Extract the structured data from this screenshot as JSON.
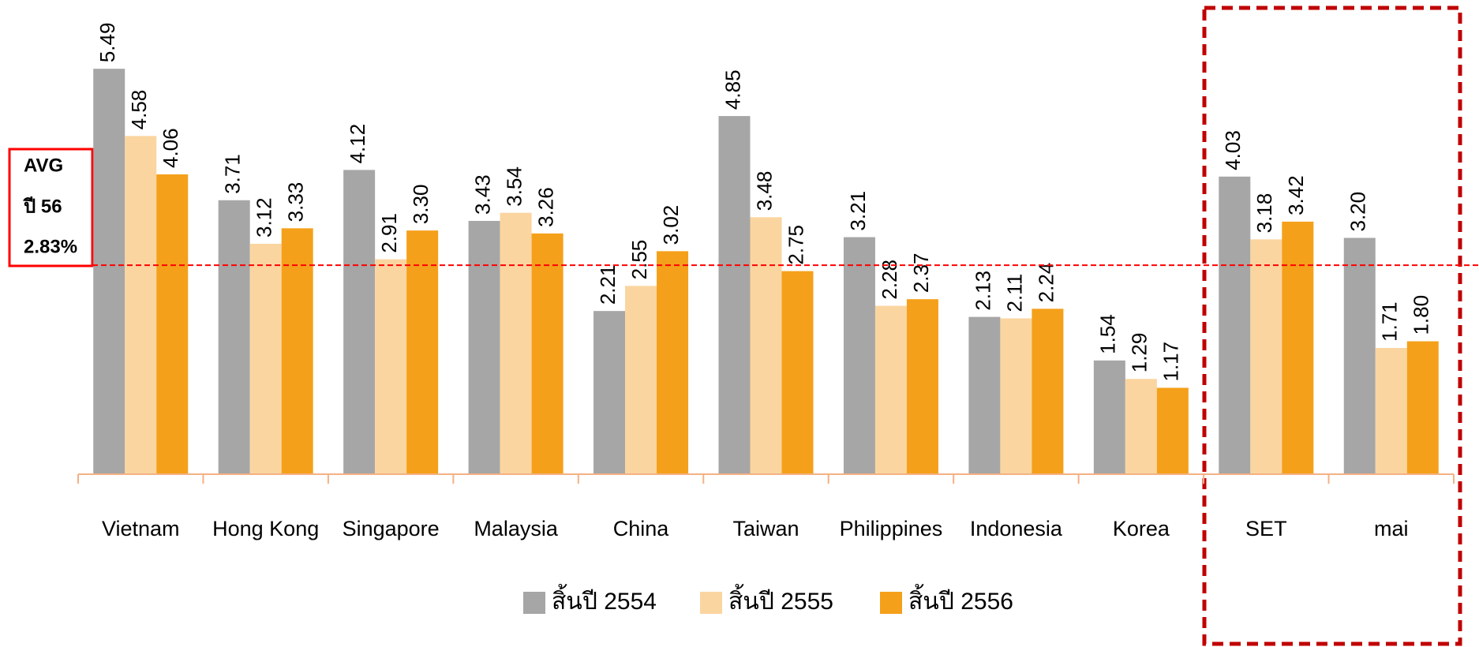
{
  "chart_data": {
    "type": "bar",
    "categories": [
      "Vietnam",
      "Hong Kong",
      "Singapore",
      "Malaysia",
      "China",
      "Taiwan",
      "Philippines",
      "Indonesia",
      "Korea",
      "SET",
      "mai"
    ],
    "series": [
      {
        "name": "สิ้นปี 2554",
        "color": "#a6a6a6",
        "values": [
          5.49,
          3.71,
          4.12,
          3.43,
          2.21,
          4.85,
          3.21,
          2.13,
          1.54,
          4.03,
          3.2
        ],
        "value_labels": [
          "5.49",
          "3.71",
          "4.12",
          "3.43",
          "2.21",
          "4.85",
          "3.21",
          "2.13",
          "1.54",
          "4.03",
          "3.20"
        ]
      },
      {
        "name": "สิ้นปี 2555",
        "color": "#fbd5a0",
        "values": [
          4.58,
          3.12,
          2.91,
          3.54,
          2.55,
          3.48,
          2.28,
          2.11,
          1.29,
          3.18,
          1.71
        ],
        "value_labels": [
          "4.58",
          "3.12",
          "2.91",
          "3.54",
          "2.55",
          "3.48",
          "2.28",
          "2.11",
          "1.29",
          "3.18",
          "1.71"
        ]
      },
      {
        "name": "สิ้นปี 2556",
        "color": "#f5a01a",
        "values": [
          4.06,
          3.33,
          3.3,
          3.26,
          3.02,
          2.75,
          2.37,
          2.24,
          1.17,
          3.42,
          1.8
        ],
        "value_labels": [
          "4.06",
          "3.33",
          "3.30",
          "3.26",
          "3.02",
          "2.75",
          "2.37",
          "2.24",
          "1.17",
          "3.42",
          "1.80"
        ]
      }
    ],
    "ylim": [
      0,
      6.4
    ],
    "reference_line": {
      "value": 2.83,
      "color": "#ff0000",
      "labels": [
        "AVG",
        "ปี 56",
        "2.83%"
      ]
    }
  }
}
